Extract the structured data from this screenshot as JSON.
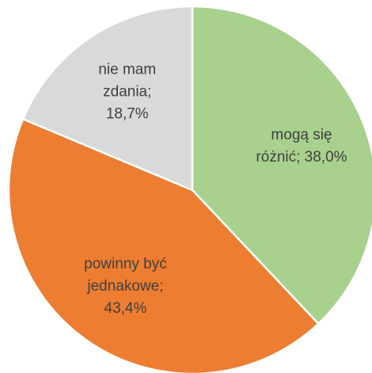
{
  "chart_data": {
    "type": "pie",
    "values": [
      38.0,
      43.4,
      18.7
    ],
    "value_labels": [
      [
        "mogą się",
        "różnić; 38,0%"
      ],
      [
        "powinny być",
        "jednakowe;",
        "43,4%"
      ],
      [
        "nie mam",
        "zdania;",
        "18,7%"
      ]
    ],
    "colors": [
      "#a9d18e",
      "#ed7d31",
      "#d9d9d9"
    ]
  }
}
